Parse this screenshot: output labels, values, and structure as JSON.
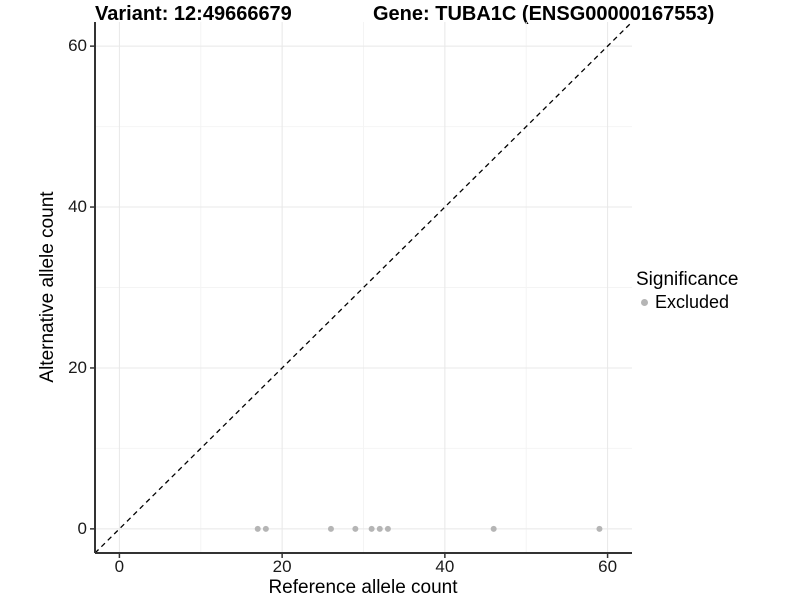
{
  "title": {
    "variant": "Variant: 12:49666679",
    "gene": "Gene: TUBA1C (ENSG00000167553)"
  },
  "legend": {
    "title": "Significance",
    "items": [
      {
        "label": "Excluded",
        "color": "#b5b5b5"
      }
    ]
  },
  "chart_data": {
    "type": "scatter",
    "title": "Variant: 12:49666679 | Gene: TUBA1C (ENSG00000167553)",
    "xlabel": "Reference allele count",
    "ylabel": "Alternative allele count",
    "xlim": [
      -3,
      63
    ],
    "ylim": [
      -3,
      63
    ],
    "x_ticks": [
      0,
      20,
      40,
      60
    ],
    "y_ticks": [
      0,
      20,
      40,
      60
    ],
    "minor_gridlines": [
      10,
      30,
      50
    ],
    "grid": true,
    "legend_position": "right",
    "series": [
      {
        "name": "Excluded",
        "color": "#b5b5b5",
        "marker": "circle",
        "points": [
          [
            17,
            0
          ],
          [
            18,
            0
          ],
          [
            26,
            0
          ],
          [
            29,
            0
          ],
          [
            31,
            0
          ],
          [
            32,
            0
          ],
          [
            33,
            0
          ],
          [
            46,
            0
          ],
          [
            59,
            0
          ]
        ]
      }
    ],
    "reference_line": {
      "type": "identity y=x",
      "style": "dashed",
      "color": "#000000"
    }
  },
  "style": {
    "background": "#ffffff",
    "axis_line_color": "#333333",
    "tick_color": "#333333",
    "major_grid_color": "#e8e8e8",
    "minor_grid_color": "#f4f4f4",
    "point_color": "#b5b5b5",
    "dashed_line_color": "#000000",
    "text_color": "#000000"
  }
}
